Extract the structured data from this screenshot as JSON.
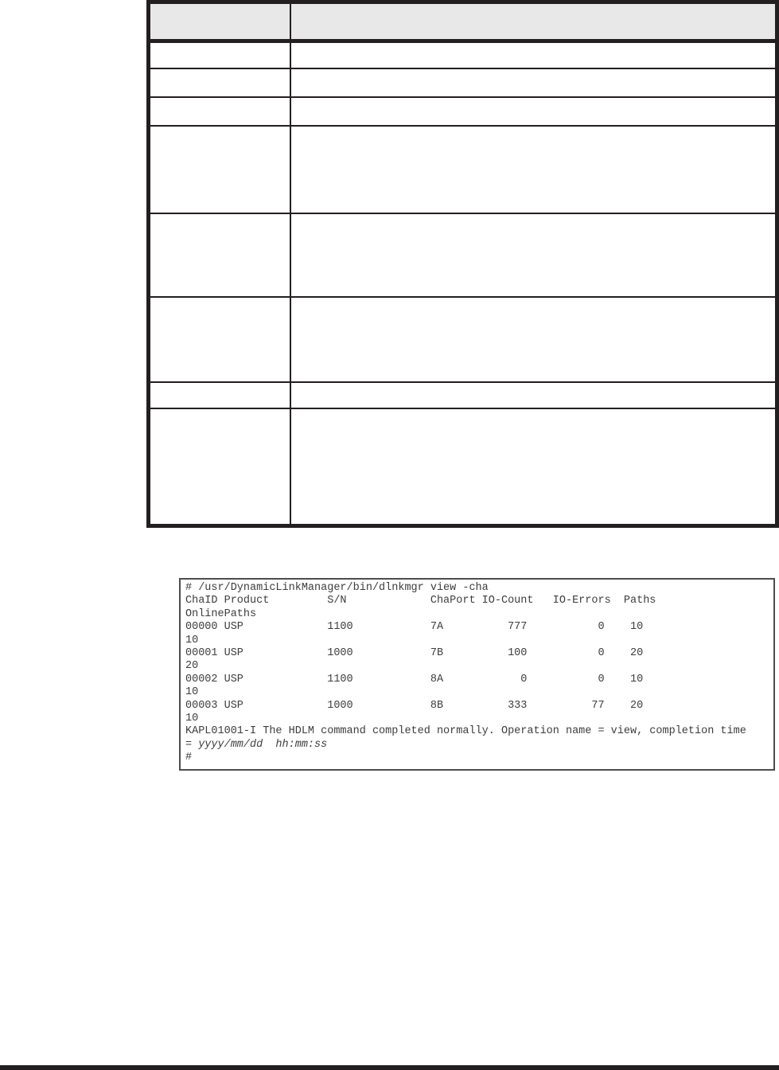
{
  "page": {
    "background_color": "#ffffff",
    "table_border_color": "#231f20",
    "table_header_fill": "#e8e8e8",
    "code_border_color": "#4d4d4d",
    "footer_rule_color": "#231f20"
  },
  "table": {
    "header": [
      "",
      ""
    ],
    "rows": [
      [
        "",
        ""
      ],
      [
        "",
        ""
      ],
      [
        "",
        ""
      ],
      [
        "",
        ""
      ],
      [
        "",
        ""
      ],
      [
        "",
        ""
      ],
      [
        "",
        ""
      ],
      [
        "",
        ""
      ]
    ]
  },
  "code_block": {
    "lines": [
      "# /usr/DynamicLinkManager/bin/dlnkmgr view -cha",
      "ChaID Product         S/N             ChaPort IO-Count   IO-Errors  Paths",
      "OnlinePaths",
      "00000 USP             1100            7A          777           0    10",
      "10",
      "00001 USP             1000            7B          100           0    20",
      "20",
      "00002 USP             1100            8A            0           0    10",
      "10",
      "00003 USP             1000            8B          333          77    20",
      "10",
      "KAPL01001-I The HDLM command completed normally. Operation name = view, completion time",
      {
        "prefix": "= ",
        "italic": "yyyy/mm/dd  hh:mm:ss"
      },
      "#"
    ]
  }
}
